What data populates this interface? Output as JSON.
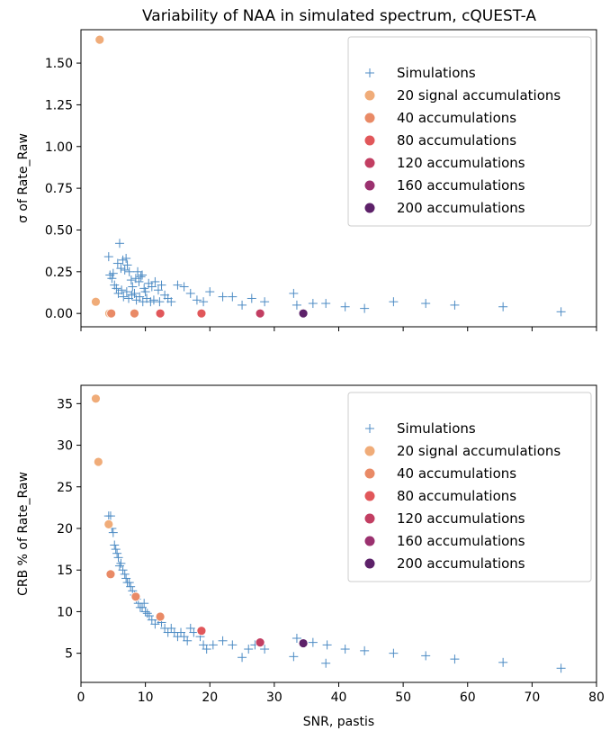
{
  "title": "Variability of NAA in simulated spectrum, cQUEST-A",
  "chart_data": [
    {
      "type": "scatter",
      "ylabel": "σ of Rate_Raw",
      "xlabel": "",
      "xlim": [
        0,
        80
      ],
      "ylim": [
        -0.08,
        1.7
      ],
      "x_ticks": [
        "0",
        "10",
        "20",
        "30",
        "40",
        "50",
        "60",
        "70",
        "80"
      ],
      "y_ticks": [
        0,
        0.25,
        0.5,
        0.75,
        1.0,
        1.25,
        1.5
      ],
      "y_tick_labels": [
        "0.00",
        "0.25",
        "0.50",
        "0.75",
        "1.00",
        "1.25",
        "1.50"
      ],
      "legend_position": "top-right",
      "legend": [
        {
          "label": "Simulations",
          "marker": "plus",
          "color": "#4c8bc4"
        },
        {
          "label": "20 signal accumulations",
          "marker": "circle",
          "color": "#f0ac79"
        },
        {
          "label": "40 accumulations",
          "marker": "circle",
          "color": "#e98a66"
        },
        {
          "label": "80 accumulations",
          "marker": "circle",
          "color": "#e1575a"
        },
        {
          "label": "120 accumulations",
          "marker": "circle",
          "color": "#c23e62"
        },
        {
          "label": "160 accumulations",
          "marker": "circle",
          "color": "#9b316f"
        },
        {
          "label": "200 accumulations",
          "marker": "circle",
          "color": "#5d2169"
        }
      ],
      "series": [
        {
          "name": "Simulations",
          "marker": "plus",
          "color": "#4c8bc4",
          "points": [
            [
              4.3,
              0.34
            ],
            [
              6.0,
              0.42
            ],
            [
              4.5,
              0.23
            ],
            [
              4.8,
              0.21
            ],
            [
              5.0,
              0.24
            ],
            [
              5.2,
              0.17
            ],
            [
              5.5,
              0.15
            ],
            [
              5.7,
              0.3
            ],
            [
              6.2,
              0.27
            ],
            [
              6.5,
              0.32
            ],
            [
              6.8,
              0.26
            ],
            [
              7.0,
              0.33
            ],
            [
              7.2,
              0.29
            ],
            [
              7.5,
              0.25
            ],
            [
              7.8,
              0.2
            ],
            [
              8.0,
              0.16
            ],
            [
              8.3,
              0.12
            ],
            [
              8.5,
              0.21
            ],
            [
              8.8,
              0.25
            ],
            [
              9.0,
              0.19
            ],
            [
              9.3,
              0.22
            ],
            [
              9.5,
              0.23
            ],
            [
              9.8,
              0.15
            ],
            [
              10.0,
              0.13
            ],
            [
              10.5,
              0.18
            ],
            [
              11.0,
              0.16
            ],
            [
              11.5,
              0.19
            ],
            [
              12.0,
              0.14
            ],
            [
              12.5,
              0.17
            ],
            [
              13.0,
              0.11
            ],
            [
              5.8,
              0.12
            ],
            [
              6.3,
              0.14
            ],
            [
              6.6,
              0.1
            ],
            [
              7.1,
              0.13
            ],
            [
              7.4,
              0.09
            ],
            [
              7.9,
              0.11
            ],
            [
              8.6,
              0.08
            ],
            [
              9.1,
              0.1
            ],
            [
              9.6,
              0.07
            ],
            [
              10.2,
              0.09
            ],
            [
              10.8,
              0.07
            ],
            [
              11.3,
              0.08
            ],
            [
              12.2,
              0.07
            ],
            [
              13.5,
              0.09
            ],
            [
              14.0,
              0.07
            ],
            [
              15.0,
              0.17
            ],
            [
              16.0,
              0.16
            ],
            [
              17.0,
              0.12
            ],
            [
              18.0,
              0.08
            ],
            [
              19.0,
              0.07
            ],
            [
              20.0,
              0.13
            ],
            [
              22.0,
              0.1
            ],
            [
              23.5,
              0.1
            ],
            [
              25.0,
              0.05
            ],
            [
              26.5,
              0.09
            ],
            [
              28.5,
              0.07
            ],
            [
              33.0,
              0.12
            ],
            [
              33.5,
              0.05
            ],
            [
              36.0,
              0.06
            ],
            [
              38.0,
              0.06
            ],
            [
              41.0,
              0.04
            ],
            [
              44.0,
              0.03
            ],
            [
              48.5,
              0.07
            ],
            [
              53.5,
              0.06
            ],
            [
              58.0,
              0.05
            ],
            [
              65.5,
              0.04
            ],
            [
              74.5,
              0.01
            ]
          ]
        },
        {
          "name": "20 signal accumulations",
          "marker": "circle",
          "color": "#f0ac79",
          "points": [
            [
              2.9,
              1.64
            ],
            [
              2.3,
              0.07
            ],
            [
              4.4,
              0.0
            ]
          ]
        },
        {
          "name": "40 accumulations",
          "marker": "circle",
          "color": "#e98a66",
          "points": [
            [
              4.7,
              0.0
            ],
            [
              8.3,
              0.0
            ]
          ]
        },
        {
          "name": "80 accumulations",
          "marker": "circle",
          "color": "#e1575a",
          "points": [
            [
              12.3,
              0.0
            ],
            [
              18.7,
              0.0
            ]
          ]
        },
        {
          "name": "120 accumulations",
          "marker": "circle",
          "color": "#c23e62",
          "points": [
            [
              27.8,
              0.0
            ]
          ]
        },
        {
          "name": "160 accumulations",
          "marker": "circle",
          "color": "#9b316f",
          "points": []
        },
        {
          "name": "200 accumulations",
          "marker": "circle",
          "color": "#5d2169",
          "points": [
            [
              34.5,
              0.0
            ]
          ]
        }
      ]
    },
    {
      "type": "scatter",
      "ylabel": "CRB % of Rate_Raw",
      "xlabel": "SNR, pastis",
      "xlim": [
        0,
        80
      ],
      "ylim": [
        1.5,
        37.2
      ],
      "x_ticks": [
        "0",
        "10",
        "20",
        "30",
        "40",
        "50",
        "60",
        "70",
        "80"
      ],
      "y_ticks": [
        5,
        10,
        15,
        20,
        25,
        30,
        35
      ],
      "y_tick_labels": [
        "5",
        "10",
        "15",
        "20",
        "25",
        "30",
        "35"
      ],
      "legend_position": "top-right",
      "legend": [
        {
          "label": "Simulations",
          "marker": "plus",
          "color": "#4c8bc4"
        },
        {
          "label": "20 signal accumulations",
          "marker": "circle",
          "color": "#f0ac79"
        },
        {
          "label": "40 accumulations",
          "marker": "circle",
          "color": "#e98a66"
        },
        {
          "label": "80 accumulations",
          "marker": "circle",
          "color": "#e1575a"
        },
        {
          "label": "120 accumulations",
          "marker": "circle",
          "color": "#c23e62"
        },
        {
          "label": "160 accumulations",
          "marker": "circle",
          "color": "#9b316f"
        },
        {
          "label": "200 accumulations",
          "marker": "circle",
          "color": "#5d2169"
        }
      ],
      "series": [
        {
          "name": "Simulations",
          "marker": "plus",
          "color": "#4c8bc4",
          "points": [
            [
              4.3,
              21.5
            ],
            [
              4.6,
              21.5
            ],
            [
              4.8,
              20.0
            ],
            [
              5.0,
              19.5
            ],
            [
              5.2,
              18.0
            ],
            [
              5.4,
              17.5
            ],
            [
              5.6,
              17.0
            ],
            [
              5.8,
              16.5
            ],
            [
              6.0,
              15.5
            ],
            [
              6.2,
              15.8
            ],
            [
              6.5,
              15.0
            ],
            [
              6.8,
              14.5
            ],
            [
              7.0,
              14.0
            ],
            [
              7.2,
              13.5
            ],
            [
              7.5,
              13.5
            ],
            [
              7.7,
              13.0
            ],
            [
              8.0,
              12.5
            ],
            [
              8.3,
              12.0
            ],
            [
              8.6,
              11.5
            ],
            [
              8.9,
              11.0
            ],
            [
              9.2,
              10.5
            ],
            [
              9.5,
              10.5
            ],
            [
              9.8,
              11.0
            ],
            [
              10.0,
              10.0
            ],
            [
              10.3,
              9.8
            ],
            [
              10.6,
              9.5
            ],
            [
              11.0,
              9.0
            ],
            [
              11.5,
              8.5
            ],
            [
              12.0,
              9.0
            ],
            [
              12.5,
              8.7
            ],
            [
              13.0,
              8.0
            ],
            [
              13.5,
              7.5
            ],
            [
              14.0,
              8.0
            ],
            [
              14.5,
              7.5
            ],
            [
              15.0,
              7.0
            ],
            [
              15.5,
              7.5
            ],
            [
              16.0,
              7.0
            ],
            [
              16.5,
              6.5
            ],
            [
              17.0,
              8.0
            ],
            [
              17.5,
              7.5
            ],
            [
              18.5,
              7.0
            ],
            [
              19.0,
              6.0
            ],
            [
              19.5,
              5.5
            ],
            [
              20.5,
              6.0
            ],
            [
              22.0,
              6.5
            ],
            [
              23.5,
              6.0
            ],
            [
              25.0,
              4.5
            ],
            [
              26.0,
              5.5
            ],
            [
              27.0,
              6.0
            ],
            [
              28.5,
              5.5
            ],
            [
              33.0,
              4.6
            ],
            [
              33.5,
              6.8
            ],
            [
              36.0,
              6.3
            ],
            [
              38.0,
              3.8
            ],
            [
              38.2,
              6.0
            ],
            [
              41.0,
              5.5
            ],
            [
              44.0,
              5.3
            ],
            [
              48.5,
              5.0
            ],
            [
              53.5,
              4.7
            ],
            [
              58.0,
              4.3
            ],
            [
              65.5,
              3.9
            ],
            [
              74.5,
              3.2
            ]
          ]
        },
        {
          "name": "20 signal accumulations",
          "marker": "circle",
          "color": "#f0ac79",
          "points": [
            [
              2.3,
              35.6
            ],
            [
              2.7,
              28.0
            ],
            [
              4.3,
              20.5
            ]
          ]
        },
        {
          "name": "40 accumulations",
          "marker": "circle",
          "color": "#e98a66",
          "points": [
            [
              4.6,
              14.5
            ],
            [
              8.5,
              11.8
            ],
            [
              12.3,
              9.4
            ]
          ]
        },
        {
          "name": "80 accumulations",
          "marker": "circle",
          "color": "#e1575a",
          "points": [
            [
              18.7,
              7.7
            ]
          ]
        },
        {
          "name": "120 accumulations",
          "marker": "circle",
          "color": "#c23e62",
          "points": [
            [
              27.8,
              6.3
            ]
          ]
        },
        {
          "name": "160 accumulations",
          "marker": "circle",
          "color": "#9b316f",
          "points": []
        },
        {
          "name": "200 accumulations",
          "marker": "circle",
          "color": "#5d2169",
          "points": [
            [
              34.5,
              6.2
            ]
          ]
        }
      ]
    }
  ]
}
